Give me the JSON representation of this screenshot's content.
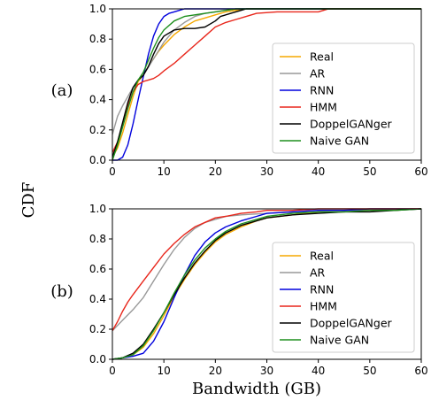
{
  "figure": {
    "ylabel": "CDF",
    "xlabel": "Bandwidth (GB)"
  },
  "colors": {
    "Real": "#f5a800",
    "AR": "#999999",
    "RNN": "#0000dd",
    "HMM": "#e8261b",
    "DoppelGANger": "#000000",
    "Naive GAN": "#1e8f1e"
  },
  "chart_data": [
    {
      "type": "line",
      "panel_label": "(a)",
      "xlim": [
        0,
        60
      ],
      "ylim": [
        0.0,
        1.0
      ],
      "xticks": [
        0,
        10,
        20,
        30,
        40,
        50,
        60
      ],
      "yticks": [
        0.0,
        0.2,
        0.4,
        0.6,
        0.8,
        1.0
      ],
      "legend_position": "lower right",
      "series": [
        {
          "name": "Real",
          "x": [
            0,
            1,
            2,
            3,
            4,
            5,
            6,
            7,
            8,
            9,
            10,
            12,
            14,
            16,
            18,
            20,
            22,
            24,
            26,
            28,
            60
          ],
          "y": [
            0.02,
            0.08,
            0.18,
            0.3,
            0.42,
            0.52,
            0.56,
            0.62,
            0.67,
            0.72,
            0.76,
            0.83,
            0.88,
            0.92,
            0.94,
            0.96,
            0.98,
            0.99,
            1.0,
            1.0,
            1.0
          ]
        },
        {
          "name": "AR",
          "x": [
            0,
            1,
            2,
            3,
            4,
            5,
            6,
            8,
            10,
            12,
            14,
            16,
            18,
            20,
            22,
            24,
            26,
            60
          ],
          "y": [
            0.17,
            0.29,
            0.36,
            0.42,
            0.48,
            0.53,
            0.56,
            0.67,
            0.78,
            0.86,
            0.91,
            0.95,
            0.97,
            0.98,
            0.99,
            1.0,
            1.0,
            1.0
          ]
        },
        {
          "name": "RNN",
          "x": [
            0,
            1,
            2,
            3,
            4,
            5,
            6,
            7,
            8,
            9,
            10,
            11,
            12,
            13,
            14,
            16,
            20,
            60
          ],
          "y": [
            0.0,
            0.0,
            0.02,
            0.1,
            0.24,
            0.4,
            0.55,
            0.7,
            0.82,
            0.9,
            0.95,
            0.97,
            0.98,
            0.99,
            1.0,
            1.0,
            1.0,
            1.0
          ]
        },
        {
          "name": "HMM",
          "x": [
            0,
            1,
            2,
            3,
            4,
            5,
            6,
            7,
            8,
            9,
            10,
            12,
            14,
            16,
            18,
            20,
            22,
            24,
            26,
            28,
            32,
            36,
            40,
            41,
            42,
            60
          ],
          "y": [
            0.05,
            0.12,
            0.24,
            0.36,
            0.45,
            0.5,
            0.52,
            0.53,
            0.54,
            0.56,
            0.59,
            0.64,
            0.7,
            0.76,
            0.82,
            0.88,
            0.91,
            0.93,
            0.95,
            0.97,
            0.98,
            0.98,
            0.98,
            0.99,
            1.0,
            1.0
          ]
        },
        {
          "name": "DoppelGANger",
          "x": [
            0,
            1,
            2,
            3,
            4,
            5,
            6,
            7,
            8,
            9,
            10,
            12,
            14,
            16,
            18,
            20,
            21,
            23,
            25,
            26,
            28,
            60
          ],
          "y": [
            0.02,
            0.12,
            0.25,
            0.38,
            0.48,
            0.53,
            0.56,
            0.62,
            0.7,
            0.77,
            0.82,
            0.86,
            0.87,
            0.87,
            0.88,
            0.92,
            0.95,
            0.97,
            0.99,
            1.0,
            1.0,
            1.0
          ]
        },
        {
          "name": "Naive GAN",
          "x": [
            0,
            1,
            2,
            3,
            4,
            5,
            6,
            7,
            8,
            9,
            10,
            12,
            14,
            16,
            18,
            20,
            22,
            24,
            26,
            60
          ],
          "y": [
            0.0,
            0.1,
            0.22,
            0.34,
            0.45,
            0.53,
            0.58,
            0.66,
            0.74,
            0.81,
            0.86,
            0.92,
            0.95,
            0.96,
            0.97,
            0.98,
            0.99,
            1.0,
            1.0,
            1.0
          ]
        }
      ]
    },
    {
      "type": "line",
      "panel_label": "(b)",
      "xlim": [
        0,
        60
      ],
      "ylim": [
        0.0,
        1.0
      ],
      "xticks": [
        0,
        10,
        20,
        30,
        40,
        50,
        60
      ],
      "yticks": [
        0.0,
        0.2,
        0.4,
        0.6,
        0.8,
        1.0
      ],
      "legend_position": "lower right",
      "series": [
        {
          "name": "Real",
          "x": [
            0,
            2,
            4,
            6,
            8,
            10,
            12,
            14,
            16,
            18,
            20,
            22,
            25,
            28,
            30,
            35,
            40,
            45,
            50,
            55,
            58,
            60
          ],
          "y": [
            0.0,
            0.01,
            0.03,
            0.08,
            0.17,
            0.29,
            0.42,
            0.53,
            0.63,
            0.71,
            0.78,
            0.83,
            0.88,
            0.92,
            0.94,
            0.96,
            0.98,
            0.98,
            0.99,
            0.99,
            1.0,
            1.0
          ]
        },
        {
          "name": "AR",
          "x": [
            0,
            2,
            4,
            6,
            8,
            10,
            12,
            14,
            16,
            18,
            20,
            22,
            25,
            30,
            35,
            40,
            50,
            60
          ],
          "y": [
            0.19,
            0.26,
            0.33,
            0.41,
            0.52,
            0.63,
            0.73,
            0.81,
            0.87,
            0.91,
            0.93,
            0.95,
            0.96,
            0.97,
            0.98,
            0.99,
            0.99,
            1.0
          ]
        },
        {
          "name": "RNN",
          "x": [
            0,
            2,
            4,
            6,
            8,
            10,
            12,
            14,
            16,
            18,
            20,
            22,
            25,
            28,
            30,
            35,
            40,
            45,
            50,
            55,
            60
          ],
          "y": [
            0.0,
            0.01,
            0.02,
            0.04,
            0.12,
            0.25,
            0.41,
            0.56,
            0.69,
            0.78,
            0.84,
            0.88,
            0.92,
            0.95,
            0.97,
            0.98,
            0.99,
            0.99,
            1.0,
            1.0,
            1.0
          ]
        },
        {
          "name": "HMM",
          "x": [
            0,
            1,
            2,
            3,
            4,
            6,
            8,
            10,
            12,
            14,
            16,
            18,
            20,
            22,
            25,
            28,
            30,
            35,
            40,
            50,
            60
          ],
          "y": [
            0.19,
            0.25,
            0.32,
            0.38,
            0.43,
            0.52,
            0.61,
            0.7,
            0.77,
            0.83,
            0.88,
            0.91,
            0.94,
            0.95,
            0.97,
            0.98,
            0.99,
            0.99,
            1.0,
            1.0,
            1.0
          ]
        },
        {
          "name": "DoppelGANger",
          "x": [
            0,
            2,
            4,
            6,
            8,
            10,
            12,
            14,
            16,
            18,
            20,
            22,
            25,
            28,
            30,
            35,
            40,
            45,
            50,
            55,
            60
          ],
          "y": [
            0.0,
            0.01,
            0.04,
            0.1,
            0.2,
            0.31,
            0.43,
            0.54,
            0.64,
            0.72,
            0.79,
            0.84,
            0.89,
            0.92,
            0.94,
            0.96,
            0.97,
            0.98,
            0.98,
            0.99,
            1.0
          ]
        },
        {
          "name": "Naive GAN",
          "x": [
            0,
            2,
            4,
            6,
            8,
            10,
            12,
            14,
            16,
            18,
            20,
            22,
            25,
            28,
            30,
            35,
            40,
            45,
            50,
            55,
            60
          ],
          "y": [
            0.0,
            0.01,
            0.03,
            0.09,
            0.19,
            0.31,
            0.44,
            0.56,
            0.66,
            0.74,
            0.8,
            0.85,
            0.9,
            0.93,
            0.95,
            0.97,
            0.98,
            0.98,
            0.99,
            0.99,
            1.0
          ]
        }
      ]
    }
  ]
}
